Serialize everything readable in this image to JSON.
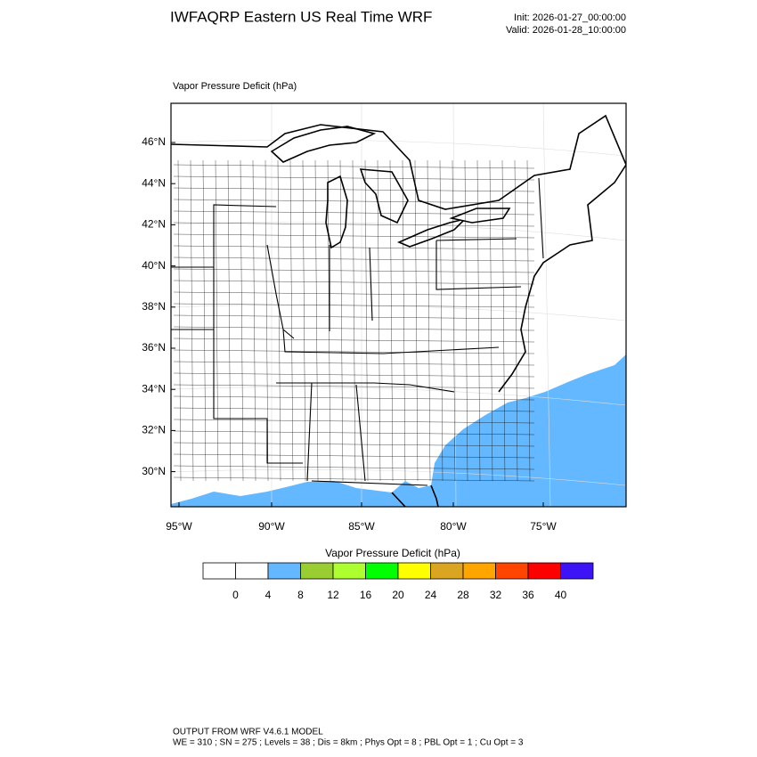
{
  "header": {
    "title": "IWFAQRP Eastern US Real Time WRF",
    "init": "Init: 2026-01-27_00:00:00",
    "valid": "Valid: 2026-01-28_10:00:00"
  },
  "map": {
    "title": "Vapor Pressure Deficit   (hPa)",
    "lat_labels": [
      "46°N",
      "44°N",
      "42°N",
      "40°N",
      "38°N",
      "36°N",
      "34°N",
      "32°N",
      "30°N"
    ],
    "lon_labels": [
      "95°W",
      "90°W",
      "85°W",
      "80°W",
      "75°W"
    ]
  },
  "colorbar": {
    "title": "Vapor Pressure Deficit  (hPa)",
    "colors": [
      "#ffffff",
      "#ffffff",
      "#63b8ff",
      "#9acd32",
      "#adff2f",
      "#00ff00",
      "#ffff00",
      "#daa520",
      "#ffa500",
      "#ff4500",
      "#ff0000",
      "#3c14f5"
    ],
    "labels": [
      "0",
      "4",
      "8",
      "12",
      "16",
      "20",
      "24",
      "28",
      "32",
      "36",
      "40"
    ]
  },
  "footer": {
    "line1": "OUTPUT FROM WRF V4.6.1 MODEL",
    "line2": "WE = 310 ; SN = 275 ; Levels = 38 ; Dis = 8km ; Phys Opt = 8 ; PBL Opt = 1 ; Cu Opt = 3"
  }
}
